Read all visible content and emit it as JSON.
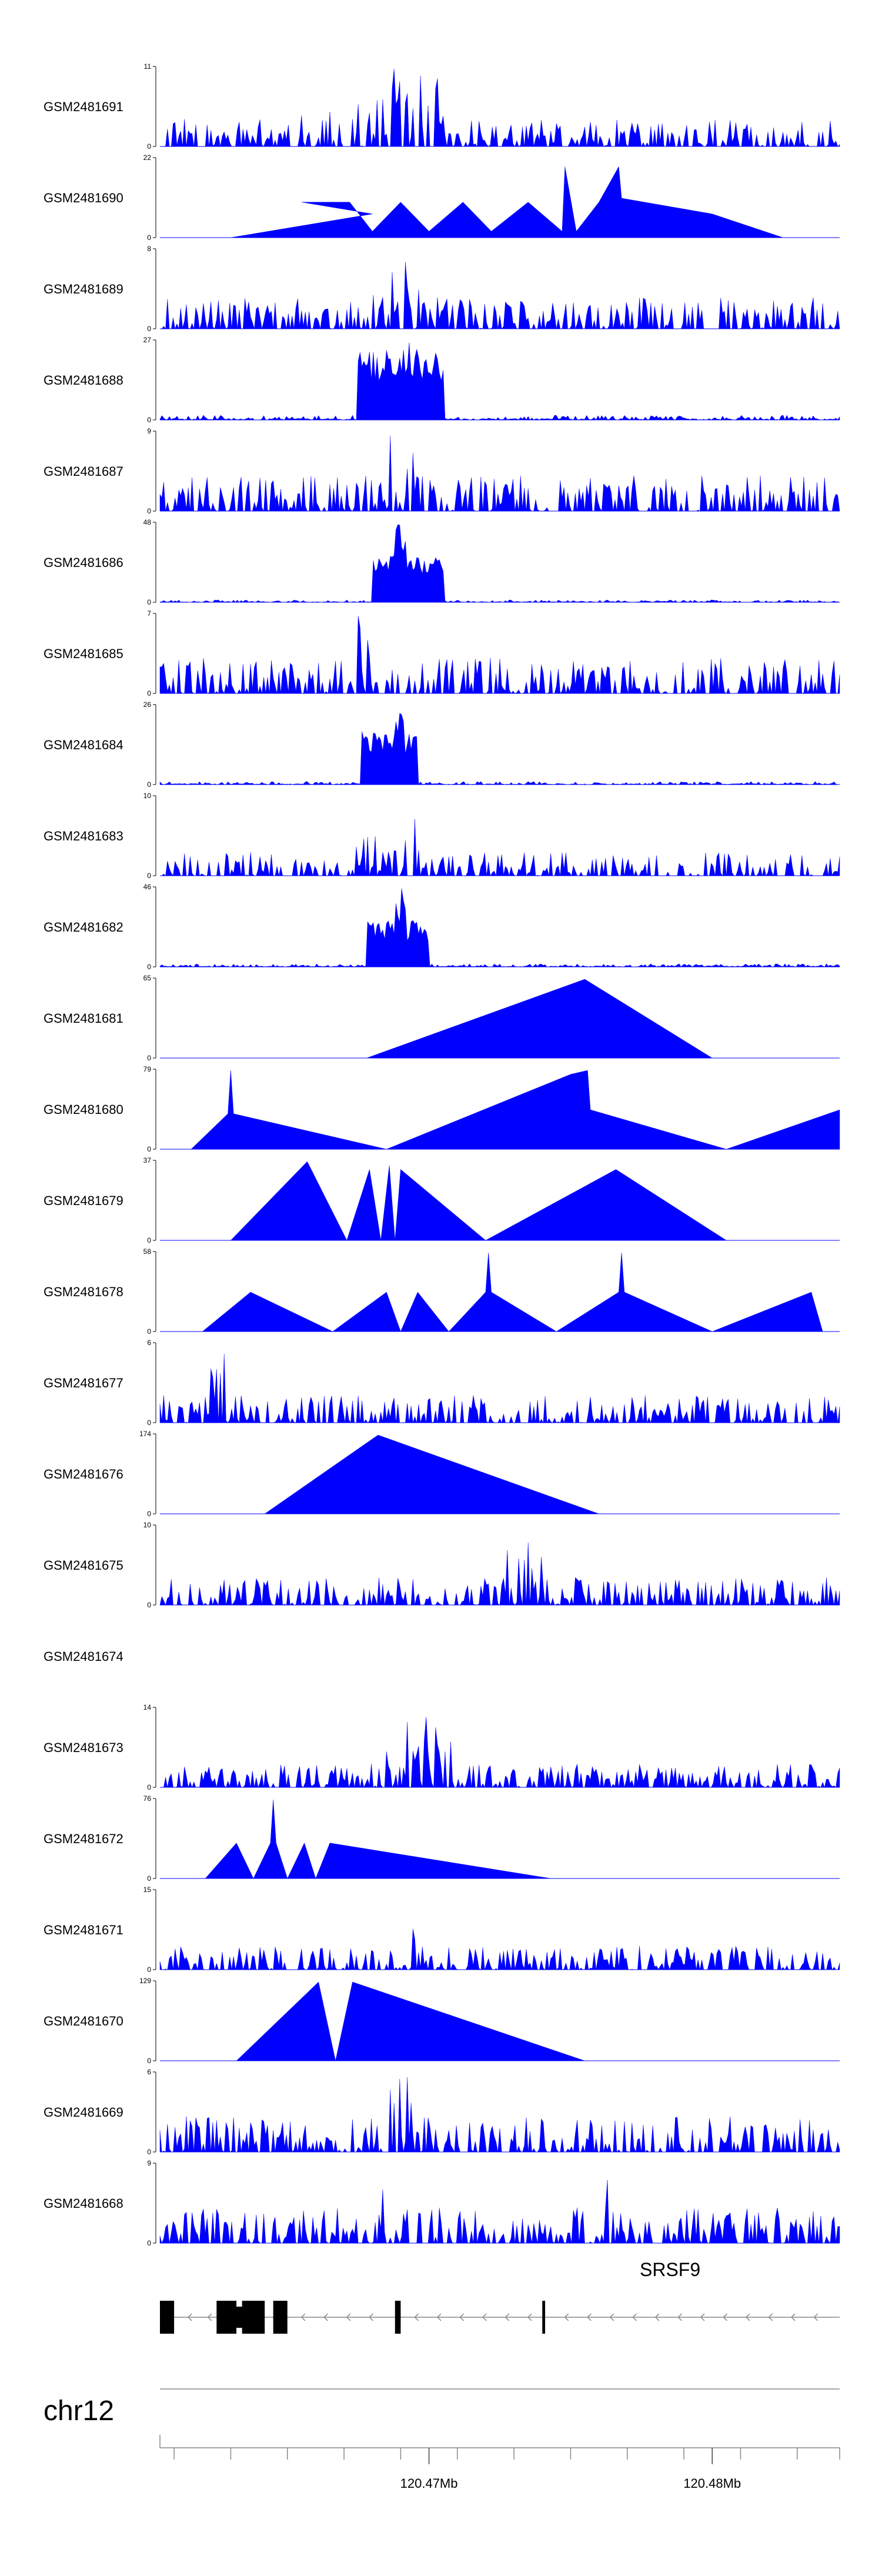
{
  "chart_data": {
    "type": "area",
    "title": "",
    "chromosome": "chr12",
    "gene": "SRSF9",
    "fill_color": "#0000ff",
    "axis_color": "#000000",
    "region_mb": [
      120.4605,
      120.4845
    ],
    "x_ticks_mb": [
      120.461,
      120.463,
      120.465,
      120.467,
      120.469,
      120.471,
      120.473,
      120.475,
      120.477,
      120.479,
      120.481,
      120.483,
      120.4845
    ],
    "x_tick_labels": [
      {
        "mb": 120.47,
        "label": "120.47Mb"
      },
      {
        "mb": 120.48,
        "label": "120.48Mb"
      }
    ],
    "gene_model": {
      "strand": "-",
      "exons_mb": [
        [
          120.4605,
          120.461
        ],
        [
          120.4625,
          120.4632
        ],
        [
          120.4634,
          120.4642
        ],
        [
          120.4645,
          120.465
        ],
        [
          120.4688,
          120.469
        ],
        [
          120.474,
          120.4741
        ]
      ],
      "thick_exons_mb": [
        [
          120.4606,
          120.4609
        ],
        [
          120.4626,
          120.4641
        ],
        [
          120.4646,
          120.4649
        ]
      ],
      "intron_arrows_mb": [
        120.4615,
        120.4622,
        120.4655,
        120.4663,
        120.4671,
        120.4679,
        120.4695,
        120.4703,
        120.4711,
        120.4719,
        120.4727,
        120.4735,
        120.4748,
        120.4756,
        120.4764,
        120.4772,
        120.478,
        120.4788,
        120.4796,
        120.4804,
        120.4812,
        120.482,
        120.4828,
        120.4836
      ]
    },
    "tracks": [
      {
        "name": "GSM2481691",
        "ymax": 11,
        "ymin": 0,
        "style": "noisy",
        "peaks": [
          [
            120.4685,
            120.4705,
            1.0
          ],
          [
            120.465,
            120.47,
            0.6
          ]
        ],
        "base": 0.35
      },
      {
        "name": "GSM2481690",
        "ymax": 22,
        "ymin": 0,
        "style": "sparse",
        "points": [
          [
            120.463,
            0
          ],
          [
            120.468,
            0.3
          ],
          [
            120.4655,
            0.45
          ],
          [
            120.4672,
            0.45
          ],
          [
            120.468,
            0.08
          ],
          [
            120.469,
            0.45
          ],
          [
            120.47,
            0.08
          ],
          [
            120.4712,
            0.45
          ],
          [
            120.4722,
            0.08
          ],
          [
            120.4735,
            0.45
          ],
          [
            120.4747,
            0.08
          ],
          [
            120.4748,
            0.9
          ],
          [
            120.4752,
            0.08
          ],
          [
            120.476,
            0.45
          ],
          [
            120.4767,
            0.9
          ],
          [
            120.4768,
            0.5
          ],
          [
            120.48,
            0.3
          ],
          [
            120.4825,
            0
          ]
        ]
      },
      {
        "name": "GSM2481689",
        "ymax": 8,
        "ymin": 0,
        "style": "noisy",
        "peaks": [
          [
            120.4685,
            120.4695,
            1.0
          ],
          [
            120.467,
            120.47,
            0.5
          ]
        ],
        "base": 0.4
      },
      {
        "name": "GSM2481688",
        "ymax": 27,
        "ymin": 0,
        "style": "peak",
        "peaks": [
          [
            120.4675,
            120.4705,
            0.9
          ],
          [
            120.4688,
            120.4693,
            1.0
          ]
        ],
        "base": 0.06
      },
      {
        "name": "GSM2481687",
        "ymax": 9,
        "ymin": 0,
        "style": "noisy",
        "peaks": [
          [
            120.4685,
            120.47,
            1.0
          ]
        ],
        "base": 0.45
      },
      {
        "name": "GSM2481686",
        "ymax": 48,
        "ymin": 0,
        "style": "peak",
        "peaks": [
          [
            120.468,
            120.4705,
            0.6
          ],
          [
            120.4688,
            120.4692,
            1.0
          ]
        ],
        "base": 0.03
      },
      {
        "name": "GSM2481685",
        "ymax": 7,
        "ymin": 0,
        "style": "noisy",
        "peaks": [
          [
            120.4675,
            120.468,
            1.0
          ]
        ],
        "base": 0.45
      },
      {
        "name": "GSM2481684",
        "ymax": 26,
        "ymin": 0,
        "style": "peak",
        "peaks": [
          [
            120.4676,
            120.4696,
            0.7
          ],
          [
            120.4688,
            120.4691,
            1.0
          ]
        ],
        "base": 0.04
      },
      {
        "name": "GSM2481683",
        "ymax": 10,
        "ymin": 0,
        "style": "noisy",
        "peaks": [
          [
            120.4693,
            120.4695,
            1.0
          ],
          [
            120.467,
            120.47,
            0.5
          ]
        ],
        "base": 0.3
      },
      {
        "name": "GSM2481682",
        "ymax": 46,
        "ymin": 0,
        "style": "peak",
        "peaks": [
          [
            120.4678,
            120.47,
            0.6
          ],
          [
            120.4688,
            120.4692,
            1.0
          ]
        ],
        "base": 0.04
      },
      {
        "name": "GSM2481681",
        "ymax": 65,
        "ymin": 0,
        "style": "sparse",
        "points": [
          [
            120.4678,
            0
          ],
          [
            120.4755,
            1.0
          ],
          [
            120.48,
            0
          ]
        ]
      },
      {
        "name": "GSM2481680",
        "ymax": 79,
        "ymin": 0,
        "style": "sparse",
        "points": [
          [
            120.4616,
            0
          ],
          [
            120.4629,
            0.45
          ],
          [
            120.463,
            1.0
          ],
          [
            120.4631,
            0.45
          ],
          [
            120.4685,
            0
          ],
          [
            120.4685,
            0
          ],
          [
            120.475,
            0.95
          ],
          [
            120.4756,
            1.0
          ],
          [
            120.4757,
            0.5
          ],
          [
            120.4805,
            0
          ],
          [
            120.4805,
            0
          ],
          [
            120.4845,
            0.5
          ],
          [
            120.4845,
            0
          ]
        ]
      },
      {
        "name": "GSM2481679",
        "ymax": 37,
        "ymin": 0,
        "style": "sparse",
        "points": [
          [
            120.463,
            0
          ],
          [
            120.4657,
            1.0
          ],
          [
            120.4671,
            0
          ],
          [
            120.4679,
            0.9
          ],
          [
            120.4683,
            0
          ],
          [
            120.4686,
            0.95
          ],
          [
            120.4688,
            0
          ],
          [
            120.469,
            0.9
          ],
          [
            120.472,
            0
          ],
          [
            120.472,
            0
          ],
          [
            120.4766,
            0.9
          ],
          [
            120.4805,
            0
          ]
        ]
      },
      {
        "name": "GSM2481678",
        "ymax": 58,
        "ymin": 0,
        "style": "sparse",
        "points": [
          [
            120.462,
            0
          ],
          [
            120.4637,
            0.5
          ],
          [
            120.4666,
            0
          ],
          [
            120.4685,
            0.5
          ],
          [
            120.469,
            0
          ],
          [
            120.4696,
            0.5
          ],
          [
            120.4707,
            0
          ],
          [
            120.472,
            0.5
          ],
          [
            120.4721,
            1.0
          ],
          [
            120.4722,
            0.5
          ],
          [
            120.4745,
            0
          ],
          [
            120.4745,
            0
          ],
          [
            120.4767,
            0.5
          ],
          [
            120.4768,
            1.0
          ],
          [
            120.4769,
            0.5
          ],
          [
            120.48,
            0
          ],
          [
            120.48,
            0
          ],
          [
            120.4835,
            0.5
          ],
          [
            120.4839,
            0
          ]
        ]
      },
      {
        "name": "GSM2481677",
        "ymax": 6,
        "ymin": 0,
        "style": "noisy",
        "peaks": [
          [
            120.4623,
            120.4628,
            1.0
          ]
        ],
        "base": 0.35
      },
      {
        "name": "GSM2481676",
        "ymax": 174,
        "ymin": 0,
        "style": "sparse",
        "points": [
          [
            120.4642,
            0
          ],
          [
            120.4682,
            1.0
          ],
          [
            120.476,
            0
          ]
        ]
      },
      {
        "name": "GSM2481675",
        "ymax": 10,
        "ymin": 0,
        "style": "noisy",
        "peaks": [
          [
            120.4732,
            120.4735,
            1.0
          ],
          [
            120.4725,
            120.474,
            0.7
          ]
        ],
        "base": 0.35
      },
      {
        "name": "GSM2481674",
        "ymax": null,
        "ymin": null,
        "style": "empty"
      },
      {
        "name": "GSM2481673",
        "ymax": 14,
        "ymin": 0,
        "style": "noisy",
        "peaks": [
          [
            120.4688,
            120.4705,
            1.0
          ],
          [
            120.4675,
            120.471,
            0.6
          ]
        ],
        "base": 0.3
      },
      {
        "name": "GSM2481672",
        "ymax": 76,
        "ymin": 0,
        "style": "sparse",
        "points": [
          [
            120.4621,
            0
          ],
          [
            120.4632,
            0.45
          ],
          [
            120.4638,
            0
          ],
          [
            120.4644,
            0.45
          ],
          [
            120.4645,
            1.0
          ],
          [
            120.4646,
            0.45
          ],
          [
            120.465,
            0
          ],
          [
            120.4656,
            0.45
          ],
          [
            120.466,
            0
          ],
          [
            120.4665,
            0.45
          ],
          [
            120.4743,
            0
          ]
        ]
      },
      {
        "name": "GSM2481671",
        "ymax": 15,
        "ymin": 0,
        "style": "noisy",
        "peaks": [
          [
            120.4693,
            120.4695,
            1.0
          ]
        ],
        "base": 0.3
      },
      {
        "name": "GSM2481670",
        "ymax": 129,
        "ymin": 0,
        "style": "sparse",
        "points": [
          [
            120.4632,
            0
          ],
          [
            120.4661,
            1.0
          ],
          [
            120.4667,
            0
          ],
          [
            120.4673,
            1.0
          ],
          [
            120.4755,
            0
          ]
        ]
      },
      {
        "name": "GSM2481669",
        "ymax": 6,
        "ymin": 0,
        "style": "noisy",
        "peaks": [
          [
            120.468,
            120.4695,
            1.0
          ]
        ],
        "base": 0.45
      },
      {
        "name": "GSM2481668",
        "ymax": 9,
        "ymin": 0,
        "style": "noisy",
        "peaks": [
          [
            120.4683,
            120.4685,
            1.0
          ],
          [
            120.4762,
            120.4764,
            0.95
          ]
        ],
        "base": 0.45
      }
    ]
  }
}
